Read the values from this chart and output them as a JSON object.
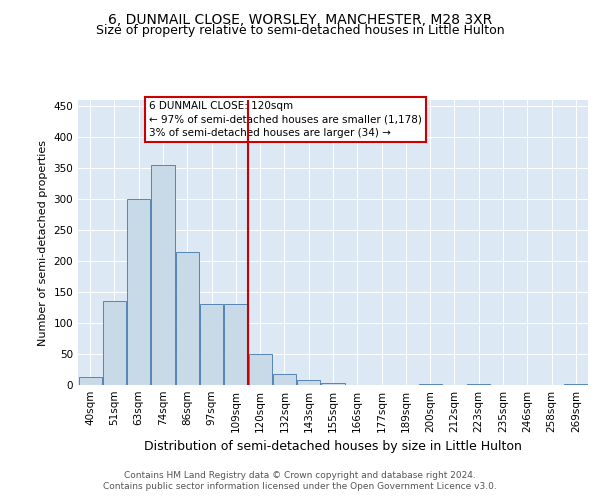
{
  "title": "6, DUNMAIL CLOSE, WORSLEY, MANCHESTER, M28 3XR",
  "subtitle": "Size of property relative to semi-detached houses in Little Hulton",
  "xlabel": "Distribution of semi-detached houses by size in Little Hulton",
  "ylabel": "Number of semi-detached properties",
  "footer_line1": "Contains HM Land Registry data © Crown copyright and database right 2024.",
  "footer_line2": "Contains public sector information licensed under the Open Government Licence v3.0.",
  "annotation_title": "6 DUNMAIL CLOSE: 120sqm",
  "annotation_line1": "← 97% of semi-detached houses are smaller (1,178)",
  "annotation_line2": "3% of semi-detached houses are larger (34) →",
  "categories": [
    "40sqm",
    "51sqm",
    "63sqm",
    "74sqm",
    "86sqm",
    "97sqm",
    "109sqm",
    "120sqm",
    "132sqm",
    "143sqm",
    "155sqm",
    "166sqm",
    "177sqm",
    "189sqm",
    "200sqm",
    "212sqm",
    "223sqm",
    "235sqm",
    "246sqm",
    "258sqm",
    "269sqm"
  ],
  "values": [
    13,
    135,
    300,
    355,
    215,
    130,
    130,
    50,
    18,
    8,
    3,
    0,
    0,
    0,
    2,
    0,
    1,
    0,
    0,
    0,
    1
  ],
  "bar_color": "#c8d9e8",
  "bar_edge_color": "#5585b5",
  "vline_color": "#cc0000",
  "annotation_box_color": "#cc0000",
  "annotation_bg": "white",
  "background_color": "#dce9f5",
  "ylim": [
    0,
    460
  ],
  "yticks": [
    0,
    50,
    100,
    150,
    200,
    250,
    300,
    350,
    400,
    450
  ],
  "title_fontsize": 10,
  "subtitle_fontsize": 9,
  "xlabel_fontsize": 9,
  "ylabel_fontsize": 8,
  "tick_fontsize": 7.5,
  "footer_fontsize": 6.5,
  "annotation_fontsize": 7.5
}
